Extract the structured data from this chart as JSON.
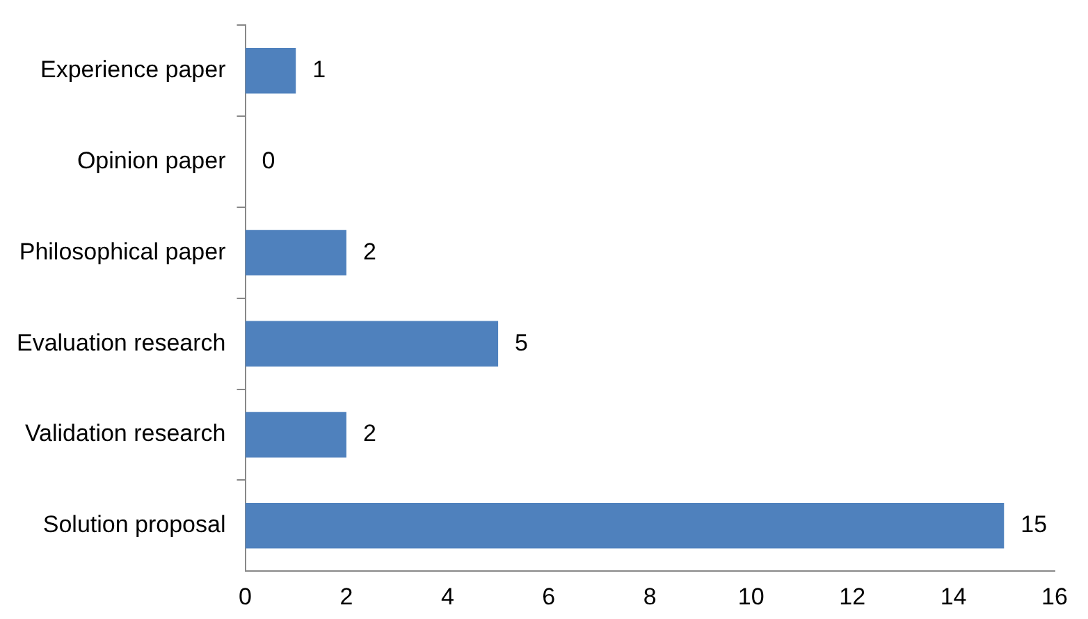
{
  "chart_data": {
    "type": "bar",
    "orientation": "horizontal",
    "categories": [
      "Experience paper",
      "Opinion paper",
      "Philosophical paper",
      "Evaluation research",
      "Validation research",
      "Solution proposal"
    ],
    "values": [
      1,
      0,
      2,
      5,
      2,
      15
    ],
    "color": "#4f81bd",
    "xlim": [
      0,
      16
    ],
    "xticks": [
      0,
      2,
      4,
      6,
      8,
      10,
      12,
      14,
      16
    ],
    "grid": false,
    "legend": false,
    "data_labels": true
  }
}
